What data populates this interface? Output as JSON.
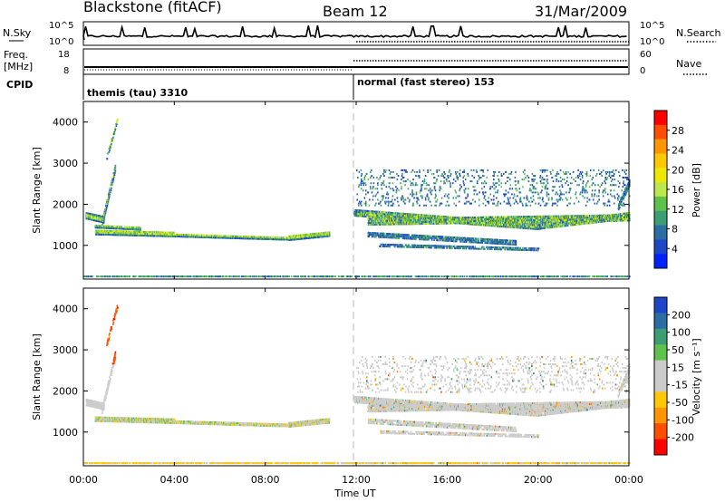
{
  "header": {
    "station": "Blackstone (fitACF)",
    "beam": "Beam 12",
    "date": "31/Mar/2009"
  },
  "top_panel": {
    "nsky_label": "N.Sky",
    "nsky_ticks": [
      "10^5",
      "10^0"
    ],
    "nsearch_label": "N.Search",
    "nsearch_ticks": [
      "10^5",
      "10^0"
    ],
    "freq_label": "Freq.",
    "freq_unit": "[MHz]",
    "freq_ticks": [
      "18",
      "8"
    ],
    "nave_label": "Nave",
    "nave_ticks": [
      "60",
      "0"
    ],
    "cpid_label": "CPID"
  },
  "modes": [
    {
      "start_hour": 0,
      "label": "themis (tau) 3310"
    },
    {
      "start_hour": 12,
      "label": "normal (fast stereo) 153"
    }
  ],
  "chart_data": [
    {
      "type": "heatmap",
      "name": "power",
      "x_unit_label": "Time UT",
      "xlim": [
        0,
        24
      ],
      "x_ticks": [
        "00:00",
        "04:00",
        "08:00",
        "12:00",
        "16:00",
        "20:00",
        "00:00"
      ],
      "ylabel": "Slant Range [km]",
      "ylim": [
        180,
        4500
      ],
      "y_ticks": [
        1000,
        2000,
        3000,
        4000
      ],
      "colorbar_label": "Power [dB]",
      "colorbar_ticks": [
        "28",
        "24",
        "20",
        "16",
        "12",
        "8",
        "4"
      ],
      "colorbar_colors": [
        "#ff0000",
        "#ff4e00",
        "#ff9600",
        "#ffc800",
        "#eee800",
        "#bce84b",
        "#5fc24c",
        "#3c9e74",
        "#2c6ea3",
        "#2046c8",
        "#0022ff"
      ],
      "bands": [
        {
          "t0": 0.1,
          "t1": 0.9,
          "r0": 1700,
          "r1": 1600,
          "w": 140,
          "d": 0.9
        },
        {
          "t0": 0.8,
          "t1": 1.4,
          "r0": 1500,
          "r1": 2900,
          "w": 140,
          "d": 0.8
        },
        {
          "t0": 1.0,
          "t1": 1.5,
          "r0": 3100,
          "r1": 4100,
          "w": 120,
          "d": 0.5
        },
        {
          "t0": 0.5,
          "t1": 2.5,
          "r0": 1450,
          "r1": 1400,
          "w": 80,
          "d": 0.8
        },
        {
          "t0": 0.5,
          "t1": 4.0,
          "r0": 1300,
          "r1": 1250,
          "w": 110,
          "d": 0.95
        },
        {
          "t0": 4.0,
          "t1": 7.0,
          "r0": 1240,
          "r1": 1190,
          "w": 90,
          "d": 0.95
        },
        {
          "t0": 7.0,
          "t1": 9.0,
          "r0": 1190,
          "r1": 1160,
          "w": 90,
          "d": 0.9
        },
        {
          "t0": 9.0,
          "t1": 10.8,
          "r0": 1170,
          "r1": 1270,
          "w": 130,
          "d": 0.95
        },
        {
          "t0": 0.0,
          "t1": 24.0,
          "r0": 220,
          "r1": 220,
          "w": 90,
          "d": 0.5
        },
        {
          "t0": 11.9,
          "t1": 20.0,
          "r0": 1780,
          "r1": 1450,
          "w": 160,
          "d": 0.8
        },
        {
          "t0": 12.5,
          "t1": 24.0,
          "r0": 1550,
          "r1": 1650,
          "w": 140,
          "d": 0.75
        },
        {
          "t0": 12.5,
          "t1": 19.0,
          "r0": 1250,
          "r1": 1050,
          "w": 110,
          "d": 0.55
        },
        {
          "t0": 13.0,
          "t1": 20.0,
          "r0": 1000,
          "r1": 900,
          "w": 90,
          "d": 0.5
        },
        {
          "t0": 20.0,
          "t1": 24.0,
          "r0": 1450,
          "r1": 1700,
          "w": 140,
          "d": 0.75
        },
        {
          "t0": 23.5,
          "t1": 24.0,
          "r0": 1900,
          "r1": 2500,
          "w": 150,
          "d": 0.6
        },
        {
          "t0": 12.0,
          "t1": 24.0,
          "r0": 2400,
          "r1": 2400,
          "w": 900,
          "d": 0.07
        }
      ],
      "vmin": 0,
      "vmax": 32
    },
    {
      "type": "heatmap",
      "name": "velocity",
      "x_unit_label": "Time UT",
      "xlim": [
        0,
        24
      ],
      "x_ticks": [
        "00:00",
        "04:00",
        "08:00",
        "12:00",
        "16:00",
        "20:00",
        "00:00"
      ],
      "xlabel": "Time UT",
      "ylabel": "Slant Range [km]",
      "ylim": [
        180,
        4500
      ],
      "y_ticks": [
        1000,
        2000,
        3000,
        4000
      ],
      "colorbar_label": "Velocity [m s⁻¹]",
      "colorbar_ticks": [
        "200",
        "100",
        "50",
        "15",
        "-15",
        "-50",
        "-100",
        "-200"
      ],
      "colorbar_colors": [
        "#2046c8",
        "#2c6ea3",
        "#3c9e74",
        "#5fc24c",
        "#cccccc",
        "#cccccc",
        "#ffc800",
        "#ff9600",
        "#ff4e00",
        "#ff0000"
      ],
      "bands": [
        {
          "t0": 0.1,
          "t1": 0.9,
          "r0": 1700,
          "r1": 1600,
          "w": 140,
          "d": 0.9
        },
        {
          "t0": 0.8,
          "t1": 1.4,
          "r0": 1500,
          "r1": 2900,
          "w": 140,
          "d": 0.7
        },
        {
          "t0": 1.0,
          "t1": 1.5,
          "r0": 3100,
          "r1": 4100,
          "w": 120,
          "d": 0.5
        },
        {
          "t0": 0.5,
          "t1": 4.0,
          "r0": 1300,
          "r1": 1250,
          "w": 110,
          "d": 0.95
        },
        {
          "t0": 4.0,
          "t1": 7.0,
          "r0": 1240,
          "r1": 1190,
          "w": 90,
          "d": 0.9
        },
        {
          "t0": 7.0,
          "t1": 9.0,
          "r0": 1190,
          "r1": 1160,
          "w": 90,
          "d": 0.9
        },
        {
          "t0": 9.0,
          "t1": 10.8,
          "r0": 1170,
          "r1": 1270,
          "w": 130,
          "d": 0.95
        },
        {
          "t0": 0.0,
          "t1": 24.0,
          "r0": 220,
          "r1": 220,
          "w": 90,
          "d": 0.5
        },
        {
          "t0": 11.9,
          "t1": 20.0,
          "r0": 1780,
          "r1": 1450,
          "w": 160,
          "d": 0.8
        },
        {
          "t0": 12.5,
          "t1": 24.0,
          "r0": 1550,
          "r1": 1650,
          "w": 140,
          "d": 0.75
        },
        {
          "t0": 12.5,
          "t1": 19.0,
          "r0": 1250,
          "r1": 1050,
          "w": 110,
          "d": 0.55
        },
        {
          "t0": 13.0,
          "t1": 20.0,
          "r0": 1000,
          "r1": 900,
          "w": 90,
          "d": 0.5
        },
        {
          "t0": 20.0,
          "t1": 24.0,
          "r0": 1450,
          "r1": 1700,
          "w": 140,
          "d": 0.75
        },
        {
          "t0": 23.5,
          "t1": 24.0,
          "r0": 1900,
          "r1": 2500,
          "w": 150,
          "d": 0.6
        },
        {
          "t0": 12.0,
          "t1": 24.0,
          "r0": 2400,
          "r1": 2400,
          "w": 900,
          "d": 0.07
        }
      ],
      "vmin": -250,
      "vmax": 250
    }
  ]
}
